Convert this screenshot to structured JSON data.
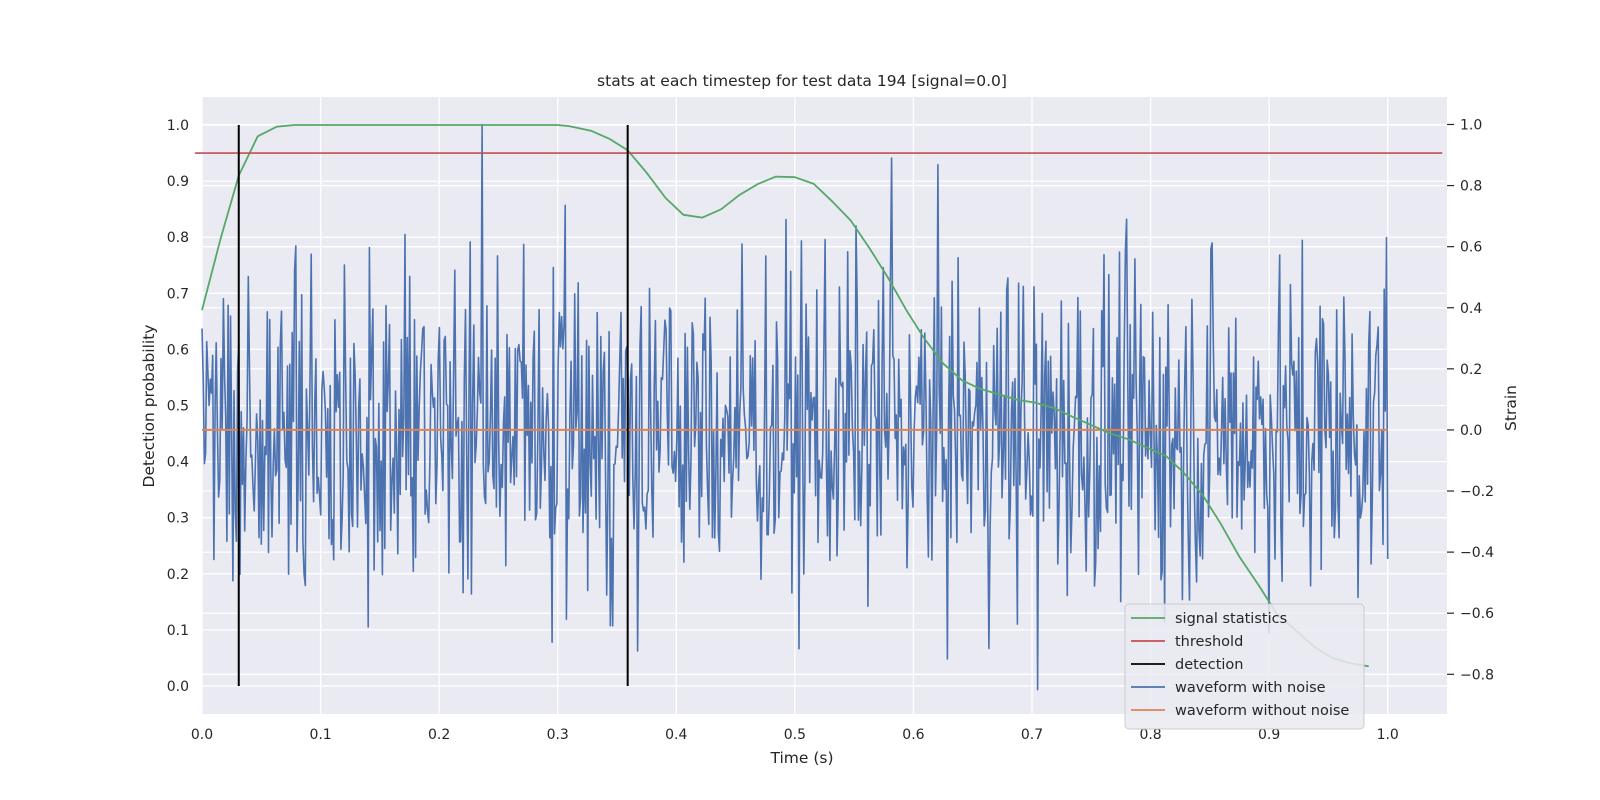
{
  "chart_data": {
    "type": "line",
    "title": "stats at each timestep for test data 194 [signal=0.0]",
    "xlabel": "Time (s)",
    "ylabel_left": "Detection probability",
    "ylabel_right": "Strain",
    "xlim": [
      0.0,
      1.05
    ],
    "ylim_left": [
      -0.05,
      1.05
    ],
    "ylim_right": [
      -0.93,
      1.09
    ],
    "x_ticks": [
      0.0,
      0.1,
      0.2,
      0.3,
      0.4,
      0.5,
      0.6,
      0.7,
      0.8,
      0.9,
      1.0
    ],
    "x_tick_labels": [
      "0.0",
      "0.1",
      "0.2",
      "0.3",
      "0.4",
      "0.5",
      "0.6",
      "0.7",
      "0.8",
      "0.9",
      "1.0"
    ],
    "y_left_ticks": [
      0.0,
      0.1,
      0.2,
      0.3,
      0.4,
      0.5,
      0.6,
      0.7,
      0.8,
      0.9,
      1.0
    ],
    "y_left_tick_labels": [
      "0.0",
      "0.1",
      "0.2",
      "0.3",
      "0.4",
      "0.5",
      "0.6",
      "0.7",
      "0.8",
      "0.9",
      "1.0"
    ],
    "y_right_ticks": [
      -0.8,
      -0.6,
      -0.4,
      -0.2,
      0.0,
      0.2,
      0.4,
      0.6,
      0.8,
      1.0
    ],
    "y_right_tick_labels": [
      "−0.8",
      "−0.6",
      "−0.4",
      "−0.2",
      "0.0",
      "0.2",
      "0.4",
      "0.6",
      "0.8",
      "1.0"
    ],
    "grid": true,
    "legend_position": "bottom-right",
    "colors": {
      "plot_bg": "#eaeaf2",
      "grid": "#ffffff",
      "signal_statistics": "#55a868",
      "threshold": "#c44e52",
      "detection": "#000000",
      "waveform_with_noise": "#4c72b0",
      "waveform_without_noise": "#dd8452"
    },
    "series": [
      {
        "name": "signal statistics",
        "axis": "left",
        "x": [
          0.0,
          0.016,
          0.031,
          0.047,
          0.063,
          0.078,
          0.094,
          0.125,
          0.2,
          0.3,
          0.31,
          0.328,
          0.344,
          0.359,
          0.375,
          0.391,
          0.406,
          0.422,
          0.438,
          0.453,
          0.469,
          0.484,
          0.5,
          0.516,
          0.531,
          0.547,
          0.563,
          0.578,
          0.594,
          0.609,
          0.625,
          0.641,
          0.656,
          0.672,
          0.688,
          0.703,
          0.719,
          0.734,
          0.75,
          0.766,
          0.781,
          0.797,
          0.813,
          0.828,
          0.844,
          0.859,
          0.875,
          0.891,
          0.906,
          0.922,
          0.938,
          0.953,
          0.969,
          0.984
        ],
        "y": [
          0.67,
          0.8,
          0.91,
          0.98,
          0.997,
          1.0,
          1.0,
          1.0,
          1.0,
          1.0,
          0.998,
          0.99,
          0.975,
          0.955,
          0.915,
          0.87,
          0.84,
          0.835,
          0.85,
          0.875,
          0.895,
          0.908,
          0.907,
          0.895,
          0.865,
          0.83,
          0.78,
          0.73,
          0.67,
          0.62,
          0.575,
          0.545,
          0.53,
          0.52,
          0.51,
          0.505,
          0.495,
          0.48,
          0.465,
          0.45,
          0.44,
          0.425,
          0.41,
          0.38,
          0.34,
          0.29,
          0.23,
          0.18,
          0.13,
          0.1,
          0.07,
          0.05,
          0.04,
          0.035
        ]
      },
      {
        "name": "threshold",
        "axis": "left",
        "x": [
          -0.006,
          1.046
        ],
        "y": [
          0.95,
          0.95
        ]
      },
      {
        "name": "detection",
        "axis": "left",
        "type": "vlines",
        "x": [
          0.031,
          0.359
        ],
        "ymin": 0.0,
        "ymax": 1.0
      },
      {
        "name": "waveform with noise",
        "axis": "right",
        "type": "noise",
        "n_points": 1000,
        "x_range": [
          0.0,
          1.0
        ],
        "y_range": [
          -0.85,
          1.01
        ],
        "notable_points": [
          {
            "x": 0.236,
            "y": 1.0
          },
          {
            "x": 0.582,
            "y": 0.89
          },
          {
            "x": 0.705,
            "y": -0.85
          },
          {
            "x": 0.999,
            "y": 0.63
          }
        ]
      },
      {
        "name": "waveform without noise",
        "axis": "right",
        "x": [
          0.0,
          1.0
        ],
        "y": [
          0.0,
          0.0
        ]
      }
    ],
    "legend_entries": [
      "signal statistics",
      "threshold",
      "detection",
      "waveform with noise",
      "waveform without noise"
    ]
  }
}
